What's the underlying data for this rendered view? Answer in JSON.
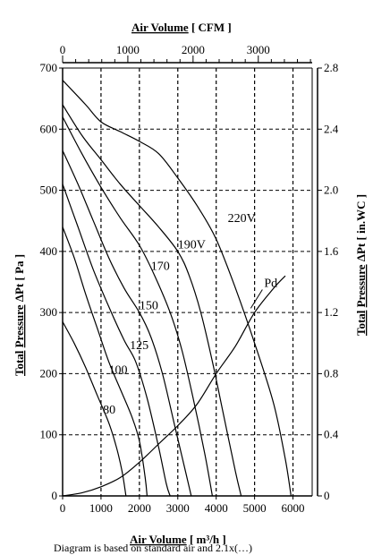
{
  "chart_data": {
    "type": "line",
    "x_bottom": {
      "label_word1": "Air Volume",
      "label_rest": " [ m³/h ]",
      "range": [
        0,
        6500
      ],
      "ticks": [
        0,
        1000,
        2000,
        3000,
        4000,
        5000,
        6000
      ]
    },
    "x_top": {
      "label_word1": "Air Volume",
      "label_rest": " [ CFM ]",
      "range": [
        0,
        3826
      ],
      "ticks": [
        0,
        1000,
        2000,
        3000
      ]
    },
    "y_left": {
      "label_word1": "Total",
      "label_word2": "Pressure",
      "label_rest": " ΔPt [ Pa ]",
      "range": [
        0,
        700
      ],
      "ticks": [
        0,
        100,
        200,
        300,
        400,
        500,
        600,
        700
      ]
    },
    "y_right": {
      "label_word1": "Total",
      "label_word2": "Pressure",
      "label_rest": " ΔPt [ in.WC ]",
      "range": [
        0,
        2.8
      ],
      "ticks": [
        "0",
        "0.4",
        "0.8",
        "1.2",
        "1.6",
        "2.0",
        "2.4",
        "2.8"
      ]
    },
    "grid": "dashed",
    "series": [
      {
        "name": "220V",
        "label_at": [
          4300,
          448
        ],
        "points": [
          [
            0,
            680
          ],
          [
            600,
            640
          ],
          [
            1000,
            612
          ],
          [
            1500,
            596
          ],
          [
            2000,
            580
          ],
          [
            2500,
            560
          ],
          [
            3000,
            520
          ],
          [
            3500,
            475
          ],
          [
            4000,
            420
          ],
          [
            4500,
            340
          ],
          [
            5000,
            250
          ],
          [
            5500,
            150
          ],
          [
            5800,
            60
          ],
          [
            5950,
            0
          ]
        ]
      },
      {
        "name": "190V",
        "label_at": [
          3000,
          405
        ],
        "points": [
          [
            0,
            640
          ],
          [
            500,
            590
          ],
          [
            1000,
            550
          ],
          [
            1500,
            510
          ],
          [
            2000,
            475
          ],
          [
            2500,
            440
          ],
          [
            3000,
            400
          ],
          [
            3300,
            360
          ],
          [
            3600,
            300
          ],
          [
            3900,
            220
          ],
          [
            4200,
            130
          ],
          [
            4500,
            40
          ],
          [
            4650,
            0
          ]
        ]
      },
      {
        "name": "170",
        "label_at": [
          2300,
          370
        ],
        "points": [
          [
            0,
            620
          ],
          [
            500,
            560
          ],
          [
            1000,
            505
          ],
          [
            1500,
            455
          ],
          [
            2000,
            410
          ],
          [
            2400,
            360
          ],
          [
            2800,
            300
          ],
          [
            3100,
            240
          ],
          [
            3400,
            160
          ],
          [
            3700,
            70
          ],
          [
            3900,
            0
          ]
        ]
      },
      {
        "name": "150",
        "label_at": [
          2000,
          305
        ],
        "points": [
          [
            0,
            565
          ],
          [
            400,
            510
          ],
          [
            800,
            450
          ],
          [
            1200,
            390
          ],
          [
            1600,
            340
          ],
          [
            2000,
            300
          ],
          [
            2300,
            260
          ],
          [
            2600,
            200
          ],
          [
            2900,
            120
          ],
          [
            3200,
            40
          ],
          [
            3350,
            0
          ]
        ]
      },
      {
        "name": "125",
        "label_at": [
          1750,
          240
        ],
        "points": [
          [
            0,
            510
          ],
          [
            400,
            440
          ],
          [
            800,
            370
          ],
          [
            1200,
            310
          ],
          [
            1600,
            255
          ],
          [
            1900,
            220
          ],
          [
            2200,
            160
          ],
          [
            2500,
            80
          ],
          [
            2700,
            20
          ],
          [
            2800,
            0
          ]
        ]
      },
      {
        "name": "100",
        "label_at": [
          1200,
          200
        ],
        "points": [
          [
            0,
            440
          ],
          [
            300,
            390
          ],
          [
            600,
            330
          ],
          [
            900,
            275
          ],
          [
            1200,
            220
          ],
          [
            1500,
            175
          ],
          [
            1800,
            130
          ],
          [
            2000,
            90
          ],
          [
            2150,
            30
          ],
          [
            2200,
            0
          ]
        ]
      },
      {
        "name": "80",
        "label_at": [
          1050,
          135
        ],
        "points": [
          [
            0,
            285
          ],
          [
            300,
            250
          ],
          [
            600,
            210
          ],
          [
            900,
            165
          ],
          [
            1200,
            120
          ],
          [
            1400,
            80
          ],
          [
            1550,
            40
          ],
          [
            1650,
            0
          ]
        ]
      },
      {
        "name": "Pd",
        "label_at": [
          5250,
          342
        ],
        "points": [
          [
            0,
            0
          ],
          [
            500,
            5
          ],
          [
            1000,
            15
          ],
          [
            1500,
            30
          ],
          [
            2000,
            55
          ],
          [
            2500,
            85
          ],
          [
            3000,
            115
          ],
          [
            3500,
            150
          ],
          [
            4000,
            200
          ],
          [
            4500,
            245
          ],
          [
            5000,
            300
          ],
          [
            5500,
            340
          ],
          [
            5800,
            360
          ]
        ]
      }
    ]
  },
  "caption_text": "Diagram is based on standard air and 2.1x(…)"
}
